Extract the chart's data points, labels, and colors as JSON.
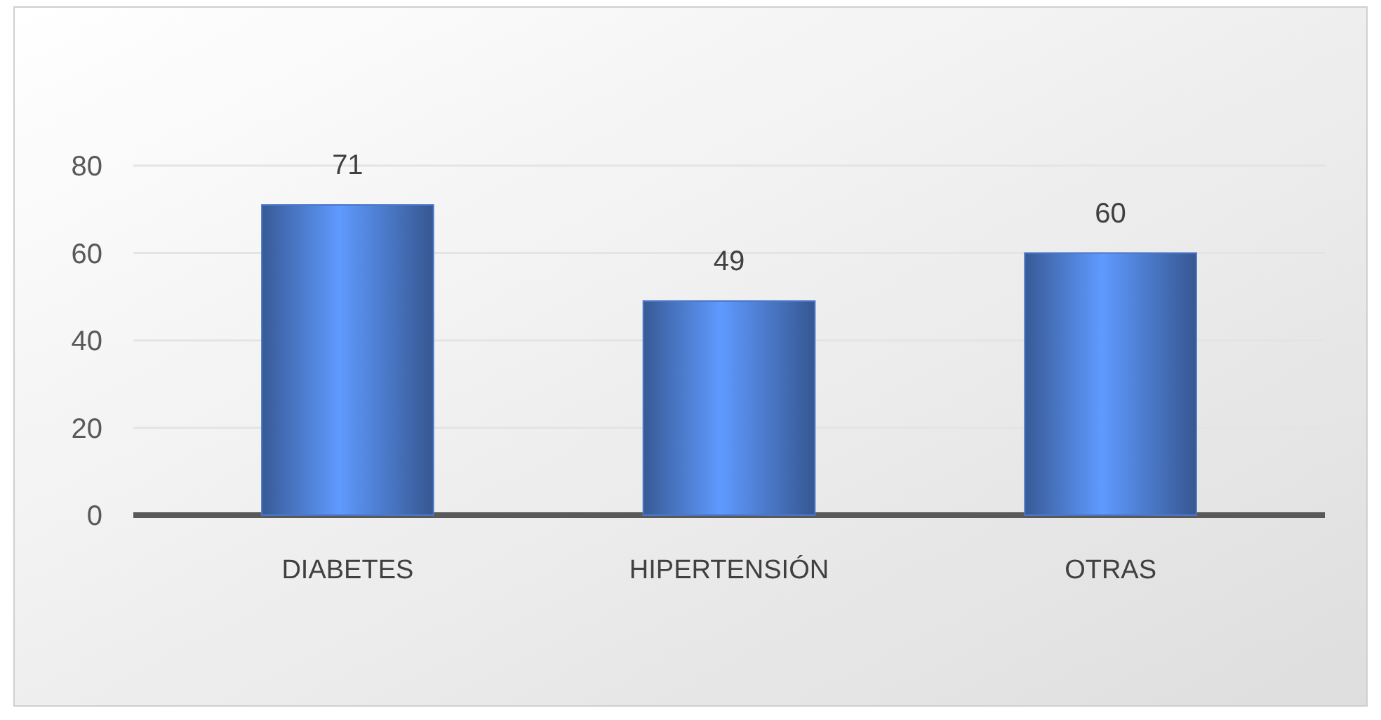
{
  "chart_data": {
    "type": "bar",
    "categories": [
      "DIABETES",
      "HIPERTENSIÓN",
      "OTRAS"
    ],
    "values": [
      71,
      49,
      60
    ],
    "color": "#4a78c8",
    "ylim": [
      0,
      80
    ],
    "yticks": [
      0,
      20,
      40,
      60,
      80
    ],
    "grid": "y",
    "data_labels": true
  }
}
